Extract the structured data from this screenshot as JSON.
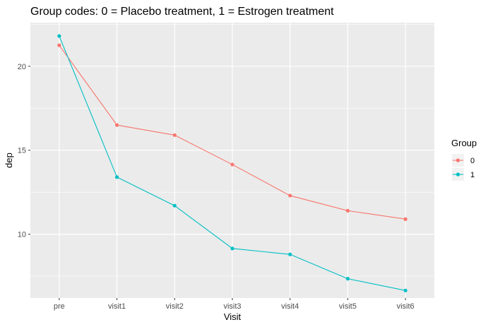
{
  "chart_data": {
    "type": "line",
    "title": "Group codes: 0 = Placebo treatment, 1 = Estrogen treatment",
    "xlabel": "Visit",
    "ylabel": "dep",
    "categories": [
      "pre",
      "visit1",
      "visit2",
      "visit3",
      "visit4",
      "visit5",
      "visit6"
    ],
    "y_ticks": [
      10,
      15,
      20
    ],
    "ylim": [
      6.2,
      22.6
    ],
    "grid": true,
    "legend": {
      "title": "Group",
      "position": "right"
    },
    "series": [
      {
        "name": "0",
        "color": "#F8766D",
        "values": [
          21.25,
          16.5,
          15.9,
          14.15,
          12.3,
          11.4,
          10.9
        ]
      },
      {
        "name": "1",
        "color": "#00BFC4",
        "values": [
          21.8,
          13.4,
          11.7,
          9.15,
          8.8,
          7.35,
          6.65
        ]
      }
    ]
  }
}
